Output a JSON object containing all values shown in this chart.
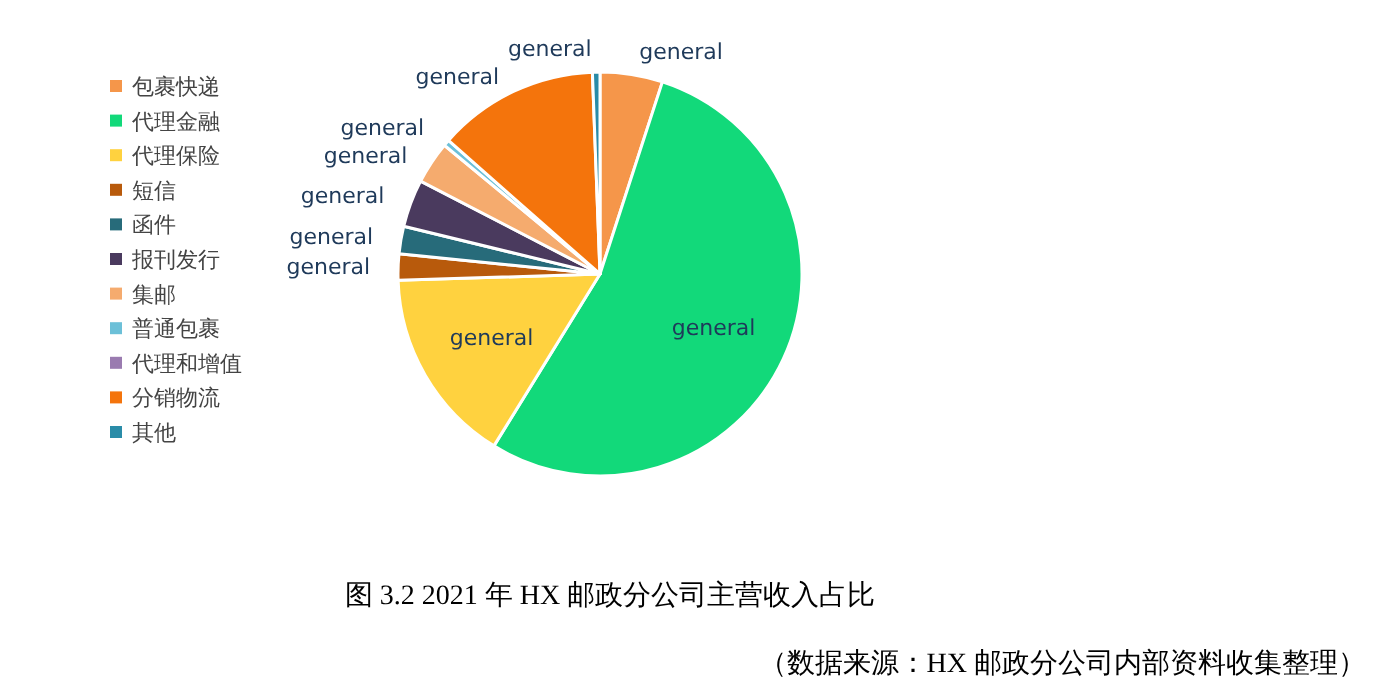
{
  "chart_data": {
    "type": "pie",
    "title": "图 3.2 2021 年 HX 邮政分公司主营收入占比",
    "categories": [
      "包裹快递",
      "代理金融",
      "代理保险",
      "短信",
      "函件",
      "报刊发行",
      "集邮",
      "普通包裹",
      "代理和增值",
      "分销物流",
      "其他"
    ],
    "values": [
      5,
      53.8,
      15.7,
      2.1,
      2.2,
      3.8,
      3.4,
      0.5,
      null,
      12.9,
      0.6
    ],
    "colors": [
      "#f5964a",
      "#12d97a",
      "#ffd23f",
      "#b85a0c",
      "#276b7a",
      "#4a3a5e",
      "#f5ab6e",
      "#6cc0d8",
      "#9a7bb0",
      "#f4740c",
      "#2a8ca8"
    ],
    "value_labels": [
      "general",
      "general",
      "general",
      "general",
      "general",
      "general",
      "general",
      "general",
      null,
      "general",
      "general"
    ],
    "legend": "left",
    "annotations": [
      "（数据来源：HX 邮政分公司内部资料收集整理）"
    ]
  }
}
